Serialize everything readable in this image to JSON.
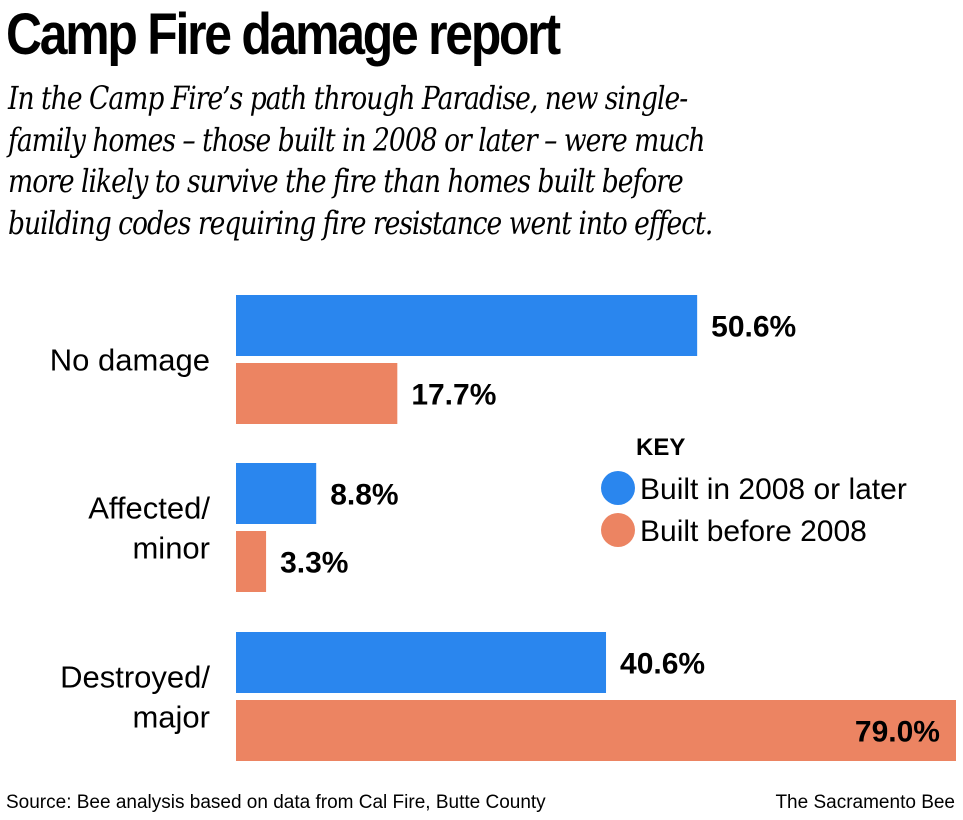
{
  "header": {
    "title": "Camp Fire damage report",
    "subtitle_lines": [
      "In the Camp Fire’s path through Paradise, new single-",
      "family homes – those built in 2008 or later – were much",
      "more likely to survive the fire than homes built before",
      "building codes requiring fire resistance went into effect."
    ]
  },
  "chart_data": {
    "type": "bar",
    "orientation": "horizontal",
    "title": "Camp Fire damage report",
    "categories": [
      "No damage",
      "Affected/ minor",
      "Destroyed/ major"
    ],
    "category_lines": [
      [
        "No damage"
      ],
      [
        "Affected/",
        "minor"
      ],
      [
        "Destroyed/",
        "major"
      ]
    ],
    "series": [
      {
        "name": "Built in 2008 or later",
        "color": "#2a86ee",
        "values": [
          50.6,
          8.8,
          40.6
        ],
        "labels": [
          "50.6%",
          "8.8%",
          "40.6%"
        ]
      },
      {
        "name": "Built before 2008",
        "color": "#ec8462",
        "values": [
          17.7,
          3.3,
          79.0
        ],
        "labels": [
          "17.7%",
          "3.3%",
          "79.0%"
        ]
      }
    ],
    "unit": "%",
    "xlim": [
      0,
      79
    ],
    "grid": false,
    "legend": {
      "title": "KEY",
      "placement": "right"
    },
    "xlabel": "",
    "ylabel": ""
  },
  "footer": {
    "source": "Source: Bee analysis based on data from Cal Fire, Butte County",
    "credit": "The Sacramento Bee"
  }
}
